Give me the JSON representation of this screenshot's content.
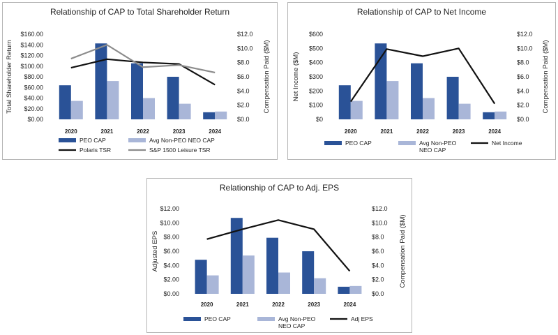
{
  "colors": {
    "peo_cap": "#2a5297",
    "neo_cap": "#a9b6d8",
    "line_primary": "#111111",
    "line_secondary": "#8c8c8c"
  },
  "chart_data": [
    {
      "type": "bar",
      "title": "Relationship of CAP to Total Shareholder Return",
      "categories": [
        "2020",
        "2021",
        "2022",
        "2023",
        "2024"
      ],
      "ylabel": "Total Shareholder Return",
      "y2label": "Compensation Paid ($M)",
      "ylim": [
        0,
        160
      ],
      "y_ticks": [
        "$0.00",
        "$20.00",
        "$40.00",
        "$60.00",
        "$80.00",
        "$100.00",
        "$120.00",
        "$140.00",
        "$160.00"
      ],
      "y2lim": [
        0,
        12
      ],
      "y2_ticks": [
        "$0.0",
        "$2.0",
        "$4.0",
        "$6.0",
        "$8.0",
        "$10.0",
        "$12.0"
      ],
      "series": [
        {
          "name": "PEO CAP",
          "kind": "bar",
          "axis": "right",
          "color": "#2a5297",
          "values": [
            4.8,
            10.7,
            7.9,
            6.0,
            1.0
          ]
        },
        {
          "name": "Avg Non-PEO NEO CAP",
          "kind": "bar",
          "axis": "right",
          "color": "#a9b6d8",
          "values": [
            2.6,
            5.4,
            3.0,
            2.2,
            1.1
          ]
        },
        {
          "name": "Polaris TSR",
          "kind": "line",
          "axis": "left",
          "color": "#111111",
          "values": [
            97,
            113,
            107,
            104,
            65
          ]
        },
        {
          "name": "S&P 1500 Leisure TSR",
          "kind": "line",
          "axis": "left",
          "color": "#8c8c8c",
          "values": [
            114,
            140,
            98,
            102,
            88
          ]
        }
      ]
    },
    {
      "type": "bar",
      "title": "Relationship of CAP to Net Income",
      "categories": [
        "2020",
        "2021",
        "2022",
        "2023",
        "2024"
      ],
      "ylabel": "Net Income ($M)",
      "y2label": "Compensation Paid ($M)",
      "ylim": [
        0,
        600
      ],
      "y_ticks": [
        "$0",
        "$100",
        "$200",
        "$300",
        "$400",
        "$500",
        "$600"
      ],
      "y2lim": [
        0,
        12
      ],
      "y2_ticks": [
        "$0.0",
        "$2.0",
        "$4.0",
        "$6.0",
        "$8.0",
        "$10.0",
        "$12.0"
      ],
      "series": [
        {
          "name": "PEO CAP",
          "kind": "bar",
          "axis": "right",
          "color": "#2a5297",
          "values": [
            4.8,
            10.7,
            7.9,
            6.0,
            1.0
          ]
        },
        {
          "name": "Avg Non-PEO NEO CAP",
          "kind": "bar",
          "axis": "right",
          "color": "#a9b6d8",
          "values": [
            2.6,
            5.4,
            3.0,
            2.2,
            1.1
          ]
        },
        {
          "name": "Net Income",
          "kind": "line",
          "axis": "left",
          "color": "#111111",
          "values": [
            125,
            495,
            445,
            500,
            110
          ]
        }
      ]
    },
    {
      "type": "bar",
      "title": "Relationship of CAP to Adj. EPS",
      "categories": [
        "2020",
        "2021",
        "2022",
        "2023",
        "2024"
      ],
      "ylabel": "Adjusted EPS",
      "y2label": "Compensation Paid ($M)",
      "ylim": [
        0,
        12
      ],
      "y_ticks": [
        "$0.00",
        "$2.00",
        "$4.00",
        "$6.00",
        "$8.00",
        "$10.00",
        "$12.00"
      ],
      "y2lim": [
        0,
        12
      ],
      "y2_ticks": [
        "$0.0",
        "$2.0",
        "$4.0",
        "$6.0",
        "$8.0",
        "$10.0",
        "$12.0"
      ],
      "series": [
        {
          "name": "PEO CAP",
          "kind": "bar",
          "axis": "right",
          "color": "#2a5297",
          "values": [
            4.8,
            10.7,
            7.9,
            6.0,
            1.0
          ]
        },
        {
          "name": "Avg Non-PEO NEO CAP",
          "kind": "bar",
          "axis": "right",
          "color": "#a9b6d8",
          "values": [
            2.6,
            5.4,
            3.0,
            2.2,
            1.1
          ]
        },
        {
          "name": "Adj EPS",
          "kind": "line",
          "axis": "left",
          "color": "#111111",
          "values": [
            7.7,
            9.1,
            10.4,
            9.1,
            3.2
          ]
        }
      ]
    }
  ]
}
